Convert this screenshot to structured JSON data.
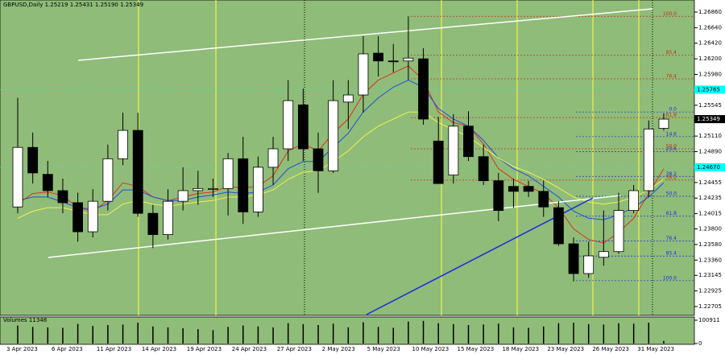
{
  "chart_data": {
    "type": "candlestick",
    "title": "GBPUSD,Daily  1.25219 1.25431 1.25190 1.25349",
    "categories": [
      "3 Apr 2023",
      null,
      null,
      "6 Apr 2023",
      null,
      null,
      "11 Apr 2023",
      null,
      null,
      "14 Apr 2023",
      null,
      null,
      "19 Apr 2023",
      null,
      null,
      "24 Apr 2023",
      null,
      null,
      "27 Apr 2023",
      null,
      null,
      "2 May 2023",
      null,
      null,
      "5 May 2023",
      null,
      null,
      "10 May 2023",
      null,
      null,
      "15 May 2023",
      null,
      null,
      "18 May 2023",
      null,
      null,
      "23 May 2023",
      null,
      null,
      "26 May 2023",
      null,
      null,
      "31 May 2023",
      null
    ],
    "open": [
      1.2411,
      1.2495,
      1.2457,
      1.2434,
      1.2417,
      1.2376,
      1.2419,
      1.2479,
      1.2519,
      1.2402,
      1.2372,
      1.2419,
      1.2434,
      1.2437,
      1.2437,
      1.2479,
      1.2404,
      1.2467,
      1.2493,
      1.2555,
      1.2493,
      1.2462,
      1.2559,
      1.2569,
      1.2628,
      1.2617,
      1.2617,
      1.262,
      1.2504,
      1.2456,
      1.2525,
      1.2482,
      1.2448,
      1.244,
      1.244,
      1.2433,
      1.241,
      1.2359,
      1.2317,
      1.234,
      1.2348,
      1.2406,
      1.2434,
      1.25219
    ],
    "high": [
      1.2565,
      1.2516,
      1.2476,
      1.2451,
      1.2431,
      1.2436,
      1.2499,
      1.2544,
      1.2544,
      1.2414,
      1.2436,
      1.2467,
      1.2462,
      1.2451,
      1.2487,
      1.251,
      1.2482,
      1.251,
      1.259,
      1.2578,
      1.2516,
      1.259,
      1.259,
      1.2652,
      1.2652,
      1.2641,
      1.268,
      1.2635,
      1.2538,
      1.2542,
      1.2546,
      1.2499,
      1.2459,
      1.2451,
      1.2448,
      1.2448,
      1.2419,
      1.2368,
      1.2362,
      1.2406,
      1.2431,
      1.2442,
      1.2533,
      1.25431
    ],
    "low": [
      1.2402,
      1.2444,
      1.2425,
      1.2402,
      1.2362,
      1.2368,
      1.2406,
      1.247,
      1.2397,
      1.2353,
      1.2365,
      1.2406,
      1.2414,
      1.2425,
      1.2399,
      1.2387,
      1.2397,
      1.2442,
      1.2476,
      1.2476,
      1.2431,
      1.2459,
      1.2521,
      1.2544,
      1.2595,
      1.2601,
      1.259,
      1.2527,
      1.2444,
      1.2444,
      1.2476,
      1.2442,
      1.2391,
      1.241,
      1.2425,
      1.2397,
      1.2356,
      1.2306,
      1.2311,
      1.2328,
      1.2345,
      1.2402,
      1.2425,
      1.2519
    ],
    "close": [
      1.2495,
      1.2459,
      1.2434,
      1.2417,
      1.2376,
      1.2419,
      1.2479,
      1.2519,
      1.2402,
      1.2372,
      1.2419,
      1.2434,
      1.2437,
      1.2437,
      1.2479,
      1.2404,
      1.2467,
      1.2493,
      1.2561,
      1.2493,
      1.2462,
      1.2561,
      1.2569,
      1.2627,
      1.2617,
      1.2616,
      1.2621,
      1.2535,
      1.2444,
      1.2525,
      1.2482,
      1.2448,
      1.2406,
      1.2433,
      1.2433,
      1.2411,
      1.2359,
      1.2317,
      1.2342,
      1.2348,
      1.2406,
      1.2434,
      1.2521,
      1.25349
    ],
    "up_color": "#ffffff",
    "down_color": "#000000",
    "ylim": [
      1.2258,
      1.2703
    ],
    "yticks": [
      {
        "value": 1.2686,
        "label": "1.26860"
      },
      {
        "value": 1.2664,
        "label": "1.26640"
      },
      {
        "value": 1.2642,
        "label": "1.26420"
      },
      {
        "value": 1.262,
        "label": "1.26200"
      },
      {
        "value": 1.2598,
        "label": "1.25980"
      },
      1.25545,
      {
        "value": 1.2511,
        "label": "1.25110"
      },
      {
        "value": 1.2489,
        "label": "1.24890"
      },
      1.24455,
      1.24235,
      1.24015,
      {
        "value": 1.238,
        "label": "1.23800"
      },
      {
        "value": 1.2358,
        "label": "1.23580"
      },
      {
        "value": 1.2336,
        "label": "1.23360"
      },
      1.23145,
      1.22925,
      1.22705
    ],
    "price_label": 1.25349,
    "levels": {
      "color": "#00ffff",
      "values": [
        1.25765,
        {
          "value": 1.2467,
          "label": "1.24670"
        }
      ]
    },
    "series": [
      {
        "color": "#e0301e",
        "values": [
          1.2415,
          1.243,
          1.2432,
          1.2427,
          1.241,
          1.2405,
          1.242,
          1.2445,
          1.244,
          1.2425,
          1.242,
          1.2425,
          1.243,
          1.2432,
          1.244,
          1.2438,
          1.244,
          1.2455,
          1.249,
          1.25,
          1.249,
          1.2515,
          1.2535,
          1.257,
          1.259,
          1.26,
          1.261,
          1.259,
          1.2545,
          1.253,
          1.2525,
          1.25,
          1.2465,
          1.245,
          1.244,
          1.243,
          1.241,
          1.238,
          1.2365,
          1.236,
          1.2375,
          1.2395,
          1.243,
          1.2465
        ]
      },
      {
        "color": "#1f4fe0",
        "values": [
          1.242,
          1.2425,
          1.2425,
          1.2418,
          1.241,
          1.2408,
          1.2415,
          1.2435,
          1.2435,
          1.2425,
          1.242,
          1.242,
          1.2425,
          1.2428,
          1.2432,
          1.243,
          1.2432,
          1.2442,
          1.2465,
          1.2475,
          1.2475,
          1.2495,
          1.2515,
          1.2545,
          1.2565,
          1.258,
          1.259,
          1.258,
          1.255,
          1.2535,
          1.2525,
          1.2505,
          1.248,
          1.2465,
          1.2455,
          1.244,
          1.2425,
          1.2405,
          1.2395,
          1.2393,
          1.24,
          1.241,
          1.2425,
          1.2445
        ]
      },
      {
        "color": "#f0f050",
        "values": [
          1.2395,
          1.2405,
          1.241,
          1.241,
          1.2405,
          1.24,
          1.24,
          1.2415,
          1.242,
          1.2415,
          1.2412,
          1.2415,
          1.2418,
          1.242,
          1.2425,
          1.2425,
          1.2428,
          1.2435,
          1.245,
          1.246,
          1.2462,
          1.2475,
          1.249,
          1.251,
          1.2525,
          1.2535,
          1.2545,
          1.2545,
          1.253,
          1.252,
          1.251,
          1.2495,
          1.248,
          1.2468,
          1.246,
          1.245,
          1.2438,
          1.2425,
          1.2418,
          1.2415,
          1.2418,
          1.2425,
          1.2435,
          1.245
        ]
      }
    ],
    "fibonacci": [
      {
        "color": "#c83018",
        "from": 1.2306,
        "to": 1.268,
        "levels": [
          {
            "value": 100,
            "label": "100.0"
          },
          85.4,
          76.4,
          61.8,
          {
            "value": 50,
            "label": "50.0"
          },
          38.2
        ]
      },
      {
        "color": "#1a2fe0",
        "from": 1.2545,
        "to": 1.2307,
        "levels": [
          {
            "value": 0,
            "label": "0.0"
          },
          14.6,
          23.6,
          38.2,
          {
            "value": 50,
            "label": "50.0"
          },
          61.8,
          76.4,
          85.4,
          {
            "value": 100,
            "label": "100.0"
          }
        ]
      }
    ],
    "volume": {
      "title": "Volumes 11348",
      "color": "#000000",
      "ylim": [
        0,
        100911
      ],
      "yticks": [
        100911,
        0
      ],
      "values": [
        78000,
        72000,
        70000,
        68000,
        85000,
        76000,
        80000,
        82000,
        90000,
        74000,
        70000,
        66000,
        62000,
        58000,
        72000,
        78000,
        74000,
        70000,
        88000,
        84000,
        80000,
        86000,
        70000,
        92000,
        72000,
        68000,
        95000,
        98000,
        88000,
        84000,
        80000,
        82000,
        86000,
        70000,
        68000,
        74000,
        88000,
        90000,
        84000,
        82000,
        88000,
        86000,
        90000,
        11348
      ]
    }
  }
}
